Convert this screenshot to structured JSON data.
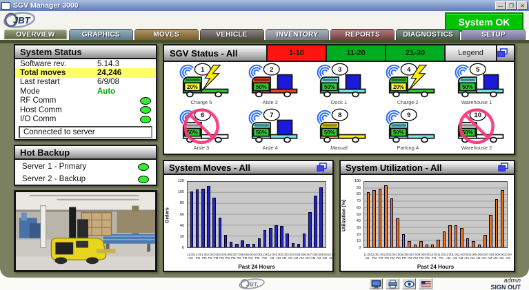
{
  "window": {
    "title": "SGV Manager 3000",
    "buttons": {
      "minimize": "—",
      "restore": "❐",
      "close": "✕"
    }
  },
  "header": {
    "logo_text": "JBT",
    "system_button": {
      "label": "System OK",
      "color": "#00c400"
    }
  },
  "tabs": [
    {
      "label": "OVERVIEW",
      "color": "#6d7b4e",
      "selected": true
    },
    {
      "label": "GRAPHICS",
      "color": "#6e93a5",
      "selected": false
    },
    {
      "label": "MOVES",
      "color": "#92702f",
      "selected": false
    },
    {
      "label": "VEHICLE",
      "color": "#5f5a50",
      "selected": false
    },
    {
      "label": "INVENTORY",
      "color": "#8d95a5",
      "selected": false
    },
    {
      "label": "REPORTS",
      "color": "#8f4a4a",
      "selected": false
    },
    {
      "label": "DIAGNOSTICS",
      "color": "#4d6a58",
      "selected": false
    },
    {
      "label": "SETUP",
      "color": "#8d87b5",
      "selected": false
    }
  ],
  "system_status": {
    "title": "System Status",
    "rows": [
      {
        "label": "Software rev.",
        "value": "5.14.3"
      },
      {
        "label": "Total moves",
        "value": "24,246",
        "highlight": true
      },
      {
        "label": "Last restart",
        "value": "6/9/08"
      },
      {
        "label": "Mode",
        "value": "Auto",
        "value_color": "#00a400",
        "bold_value": true
      },
      {
        "label": "RF Comm",
        "led": "#33ee33"
      },
      {
        "label": "Host Comm",
        "led": "#33ee33"
      },
      {
        "label": "I/O Comm",
        "led": "#33ee33"
      }
    ],
    "connection_message": "Connected to server"
  },
  "hot_backup": {
    "title": "Hot Backup",
    "rows": [
      {
        "label": "Server 1 - Primary",
        "led": "#33ee33"
      },
      {
        "label": "Server 2 - Backup",
        "led": "#33ee33"
      }
    ]
  },
  "sgv_status": {
    "title": "SGV Status - All",
    "range_buttons": [
      {
        "label": "1-10",
        "color": "#ff1414"
      },
      {
        "label": "11-20",
        "color": "#00ad22"
      },
      {
        "label": "21-30",
        "color": "#00ad22"
      }
    ],
    "legend_label": "Legend",
    "load_color": "#1a1ad8",
    "disabled_color": "#ff3377",
    "vehicles": [
      {
        "number": "1",
        "name": "Charge 5",
        "battery": "20%",
        "body": "#33cc33",
        "gauge": "#ffff33",
        "charging": true,
        "load": false,
        "wifi": true,
        "disabled": false
      },
      {
        "number": "2",
        "name": "Aisle 2",
        "battery": "50%",
        "body": "#ee4422",
        "gauge": "#33cc33",
        "charging": false,
        "load": true,
        "wifi": true,
        "disabled": false
      },
      {
        "number": "3",
        "name": "Dock 1",
        "battery": "50%",
        "body": "#77eaea",
        "gauge": "#33cc33",
        "charging": false,
        "load": true,
        "wifi": true,
        "disabled": false
      },
      {
        "number": "4",
        "name": "Charge 2",
        "battery": "20%",
        "body": "#33cc33",
        "gauge": "#ffff33",
        "charging": true,
        "load": false,
        "wifi": true,
        "disabled": false
      },
      {
        "number": "5",
        "name": "Warehouse 1",
        "battery": "50%",
        "body": "#77eaea",
        "gauge": "#33cc33",
        "charging": false,
        "load": true,
        "wifi": true,
        "disabled": false
      },
      {
        "number": "6",
        "name": "Aisle 3",
        "battery": "50%",
        "body": "#ffffff",
        "gauge": "#33cc33",
        "charging": false,
        "load": false,
        "wifi": true,
        "disabled": true
      },
      {
        "number": "7",
        "name": "Aisle 4",
        "battery": "50%",
        "body": "#77eaea",
        "gauge": "#33cc33",
        "charging": false,
        "load": true,
        "wifi": true,
        "disabled": false
      },
      {
        "number": "8",
        "name": "Manual",
        "battery": "50%",
        "body": "#ffee11",
        "gauge": "#33cc33",
        "charging": false,
        "load": false,
        "wifi": true,
        "disabled": false
      },
      {
        "number": "9",
        "name": "Parking 4",
        "battery": "50%",
        "body": "#77eaea",
        "gauge": "#33cc33",
        "charging": false,
        "load": false,
        "wifi": true,
        "disabled": false
      },
      {
        "number": "10",
        "name": "Warehouse 2",
        "battery": "50%",
        "body": "#ffffff",
        "gauge": "#33cc33",
        "charging": false,
        "load": false,
        "wifi": false,
        "disabled": true
      }
    ]
  },
  "chart_data": [
    {
      "type": "bar",
      "title": "System Moves - All",
      "xlabel": "Past 24 Hours",
      "ylabel": "Orders",
      "ylim": [
        0,
        120
      ],
      "ystep": 20,
      "bar_color": "#2424c0",
      "grid": true,
      "categories": [
        "11:00 AM",
        "12:00 PM",
        "1:00 PM",
        "2:00 PM",
        "3:00 PM",
        "4:00 PM",
        "5:00 PM",
        "6:00 PM",
        "7:00 PM",
        "8:00 PM",
        "9:00 PM",
        "10:00 PM",
        "11:00 PM",
        "12:00 AM",
        "1:00 AM",
        "2:00 AM",
        "3:00 AM",
        "4:00 AM",
        "5:00 AM",
        "6:00 AM",
        "7:00 AM",
        "8:00 AM",
        "9:00 AM",
        "10:00 AM"
      ],
      "values": [
        102,
        106,
        108,
        113,
        91,
        54,
        23,
        10,
        6,
        13,
        6,
        6,
        16,
        31,
        36,
        41,
        39,
        25,
        8,
        6,
        25,
        65,
        95,
        110
      ]
    },
    {
      "type": "bar",
      "title": "System Utilization - All",
      "xlabel": "Past 24 Hours",
      "ylabel": "Utilization (%)",
      "ylim": [
        0,
        100
      ],
      "ystep": 10,
      "bar_color": "#e87514",
      "grid": true,
      "categories": [
        "11:00 AM",
        "12:00 PM",
        "1:00 PM",
        "2:00 PM",
        "3:00 PM",
        "4:00 PM",
        "5:00 PM",
        "6:00 PM",
        "7:00 PM",
        "8:00 PM",
        "9:00 PM",
        "10:00 PM",
        "11:00 PM",
        "12:00 AM",
        "1:00 AM",
        "2:00 AM",
        "3:00 AM",
        "4:00 AM",
        "5:00 AM",
        "6:00 AM",
        "7:00 AM",
        "8:00 AM",
        "9:00 AM",
        "10:00 AM"
      ],
      "values": [
        84,
        87,
        90,
        95,
        75,
        44,
        20,
        9,
        4,
        9,
        4,
        4,
        12,
        24,
        34,
        34,
        29,
        14,
        9,
        4,
        19,
        49,
        74,
        87
      ]
    }
  ],
  "footer": {
    "logo_text": "JBT.",
    "icons": [
      "monitor-icon",
      "printer-icon",
      "eye-icon",
      "us-flag-icon"
    ],
    "user": "admin",
    "sign_out": "SIGN OUT"
  }
}
